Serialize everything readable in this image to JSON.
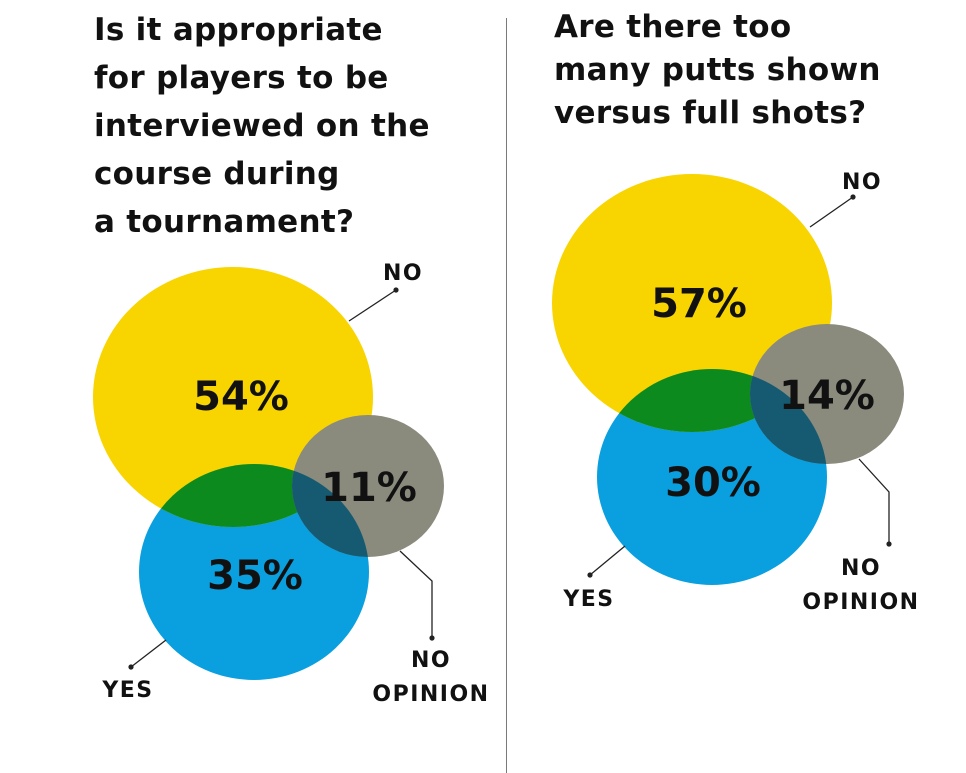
{
  "colors": {
    "no": "#f8d400",
    "yes": "#0aa0df",
    "no_opinion": "#8a8a7d",
    "overlap_no_yes": "#0d8a1e",
    "overlap_yes_noop": "#155a71"
  },
  "chart_data": [
    {
      "type": "venn",
      "title_lines": [
        "Is it appropriate",
        "for players to be",
        "interviewed on the",
        "course during",
        "a tournament?"
      ],
      "series": [
        {
          "name": "NO",
          "label_lines": [
            "NO"
          ],
          "value": 54,
          "display": "54%"
        },
        {
          "name": "YES",
          "label_lines": [
            "YES"
          ],
          "value": 35,
          "display": "35%"
        },
        {
          "name": "NO OPINION",
          "label_lines": [
            "NO",
            "OPINION"
          ],
          "value": 11,
          "display": "11%"
        }
      ]
    },
    {
      "type": "venn",
      "title_lines": [
        "Are there too",
        "many putts shown",
        "versus full shots?"
      ],
      "series": [
        {
          "name": "NO",
          "label_lines": [
            "NO"
          ],
          "value": 57,
          "display": "57%"
        },
        {
          "name": "YES",
          "label_lines": [
            "YES"
          ],
          "value": 30,
          "display": "30%"
        },
        {
          "name": "NO OPINION",
          "label_lines": [
            "NO",
            "OPINION"
          ],
          "value": 14,
          "display": "14%"
        }
      ]
    }
  ]
}
